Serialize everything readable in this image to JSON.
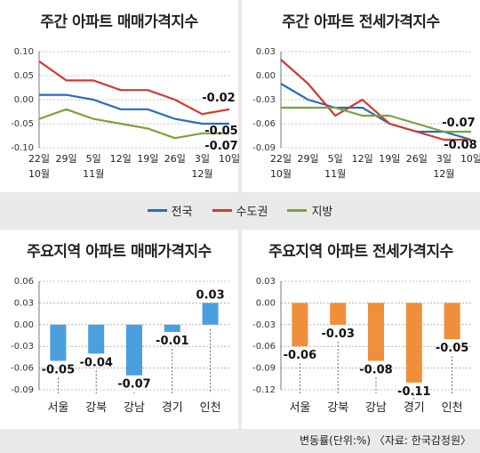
{
  "panels": {
    "p1_title": "주간 아파트 매매가격지수",
    "p2_title": "주간 아파트 전세가격지수",
    "p3_title": "주요지역 아파트 매매가격지수",
    "p4_title": "주요지역 아파트 전세가격지수"
  },
  "footer": "변동률(단위:%) 〈자료: 한국감정원〉",
  "colors": {
    "전국": "#2b6cb8",
    "수도권": "#d23a2e",
    "지방": "#7aa23a",
    "bar_blue": "#4b9fdc",
    "bar_orange": "#ef8f3a"
  },
  "chart_data": [
    {
      "type": "line",
      "title": "주간 아파트 매매가격지수",
      "x": [
        "22일 10월",
        "29일",
        "5일 11월",
        "12일",
        "19일",
        "26일",
        "3일 12월",
        "10일"
      ],
      "xticks": [
        [
          "22일",
          "10월"
        ],
        [
          "29일",
          ""
        ],
        [
          "5일",
          "11월"
        ],
        [
          "12일",
          ""
        ],
        [
          "19일",
          ""
        ],
        [
          "26일",
          ""
        ],
        [
          "3일",
          "12월"
        ],
        [
          "10일",
          ""
        ]
      ],
      "ylim": [
        -0.1,
        0.1
      ],
      "yticks": [
        "0.10",
        "0.05",
        "0.00",
        "-0.05",
        "-0.10"
      ],
      "grid": true,
      "legend": "bottom",
      "series": [
        {
          "name": "전국",
          "values": [
            0.01,
            0.01,
            0.0,
            -0.02,
            -0.02,
            -0.04,
            -0.05,
            -0.05
          ]
        },
        {
          "name": "수도권",
          "values": [
            0.08,
            0.04,
            0.04,
            0.02,
            0.02,
            0.0,
            -0.03,
            -0.02
          ]
        },
        {
          "name": "지방",
          "values": [
            -0.04,
            -0.02,
            -0.04,
            -0.05,
            -0.06,
            -0.08,
            -0.07,
            -0.07
          ]
        }
      ],
      "end_labels": [
        "-0.02",
        "-0.05",
        "-0.07"
      ]
    },
    {
      "type": "line",
      "title": "주간 아파트 전세가격지수",
      "x": [
        "22일 10월",
        "29일",
        "5일 11월",
        "12일",
        "19일",
        "26일",
        "3일 12월",
        "10일"
      ],
      "xticks": [
        [
          "22일",
          "10월"
        ],
        [
          "29일",
          ""
        ],
        [
          "5일",
          "11월"
        ],
        [
          "12일",
          ""
        ],
        [
          "19일",
          ""
        ],
        [
          "26일",
          ""
        ],
        [
          "3일",
          "12월"
        ],
        [
          "10일",
          ""
        ]
      ],
      "ylim": [
        -0.09,
        0.03
      ],
      "yticks": [
        "0.03",
        "0.00",
        "-0.03",
        "-0.06",
        "-0.09"
      ],
      "grid": true,
      "legend": "bottom",
      "series": [
        {
          "name": "전국",
          "values": [
            -0.01,
            -0.03,
            -0.04,
            -0.04,
            -0.06,
            -0.07,
            -0.07,
            -0.08
          ]
        },
        {
          "name": "수도권",
          "values": [
            0.02,
            -0.01,
            -0.05,
            -0.03,
            -0.06,
            -0.07,
            -0.08,
            -0.08
          ]
        },
        {
          "name": "지방",
          "values": [
            -0.04,
            -0.04,
            -0.04,
            -0.05,
            -0.05,
            -0.06,
            -0.07,
            -0.07
          ]
        }
      ],
      "end_labels": [
        "-0.07",
        "-0.08"
      ]
    },
    {
      "type": "bar",
      "title": "주요지역 아파트 매매가격지수",
      "categories": [
        "서울",
        "강북",
        "강남",
        "경기",
        "인천"
      ],
      "values": [
        -0.05,
        -0.04,
        -0.07,
        -0.01,
        0.03
      ],
      "labels": [
        "-0.05",
        "-0.04",
        "-0.07",
        "-0.01",
        "0.03"
      ],
      "ylim": [
        -0.09,
        0.06
      ],
      "yticks": [
        "0.06",
        "0.03",
        "0.00",
        "-0.03",
        "-0.06",
        "-0.09"
      ],
      "grid": true
    },
    {
      "type": "bar",
      "title": "주요지역 아파트 전세가격지수",
      "categories": [
        "서울",
        "강북",
        "강남",
        "경기",
        "인천"
      ],
      "values": [
        -0.06,
        -0.03,
        -0.08,
        -0.11,
        -0.05
      ],
      "labels": [
        "-0.06",
        "-0.03",
        "-0.08",
        "-0.11",
        "-0.05"
      ],
      "ylim": [
        -0.12,
        0.03
      ],
      "yticks": [
        "0.03",
        "0.00",
        "-0.03",
        "-0.06",
        "-0.09",
        "-0.12"
      ],
      "grid": true
    }
  ]
}
